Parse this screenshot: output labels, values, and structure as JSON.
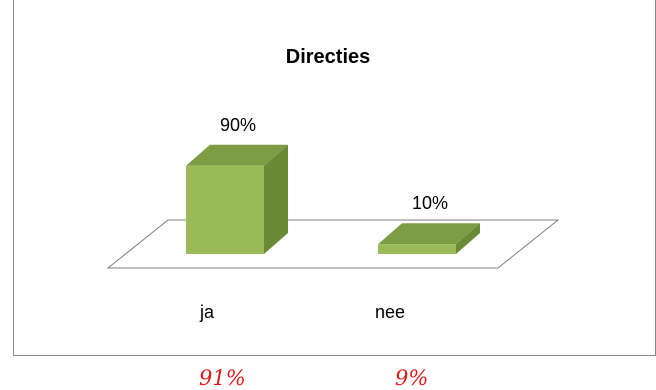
{
  "chart_data": {
    "type": "bar",
    "title": "Directies",
    "categories": [
      "ja",
      "nee"
    ],
    "values": [
      90,
      10
    ],
    "data_labels": [
      "90%",
      "10%"
    ],
    "unit": "%",
    "ylim": [
      0,
      100
    ],
    "grid": false,
    "legend": "none",
    "style": "3d-column"
  },
  "colors": {
    "bar_front": "#9bbb59",
    "bar_top": "#7e9c44",
    "bar_side": "#6b8a36",
    "floor_stroke": "#7f7f7f",
    "note_text": "#e11919"
  },
  "notes": [
    "91%",
    "9%"
  ]
}
